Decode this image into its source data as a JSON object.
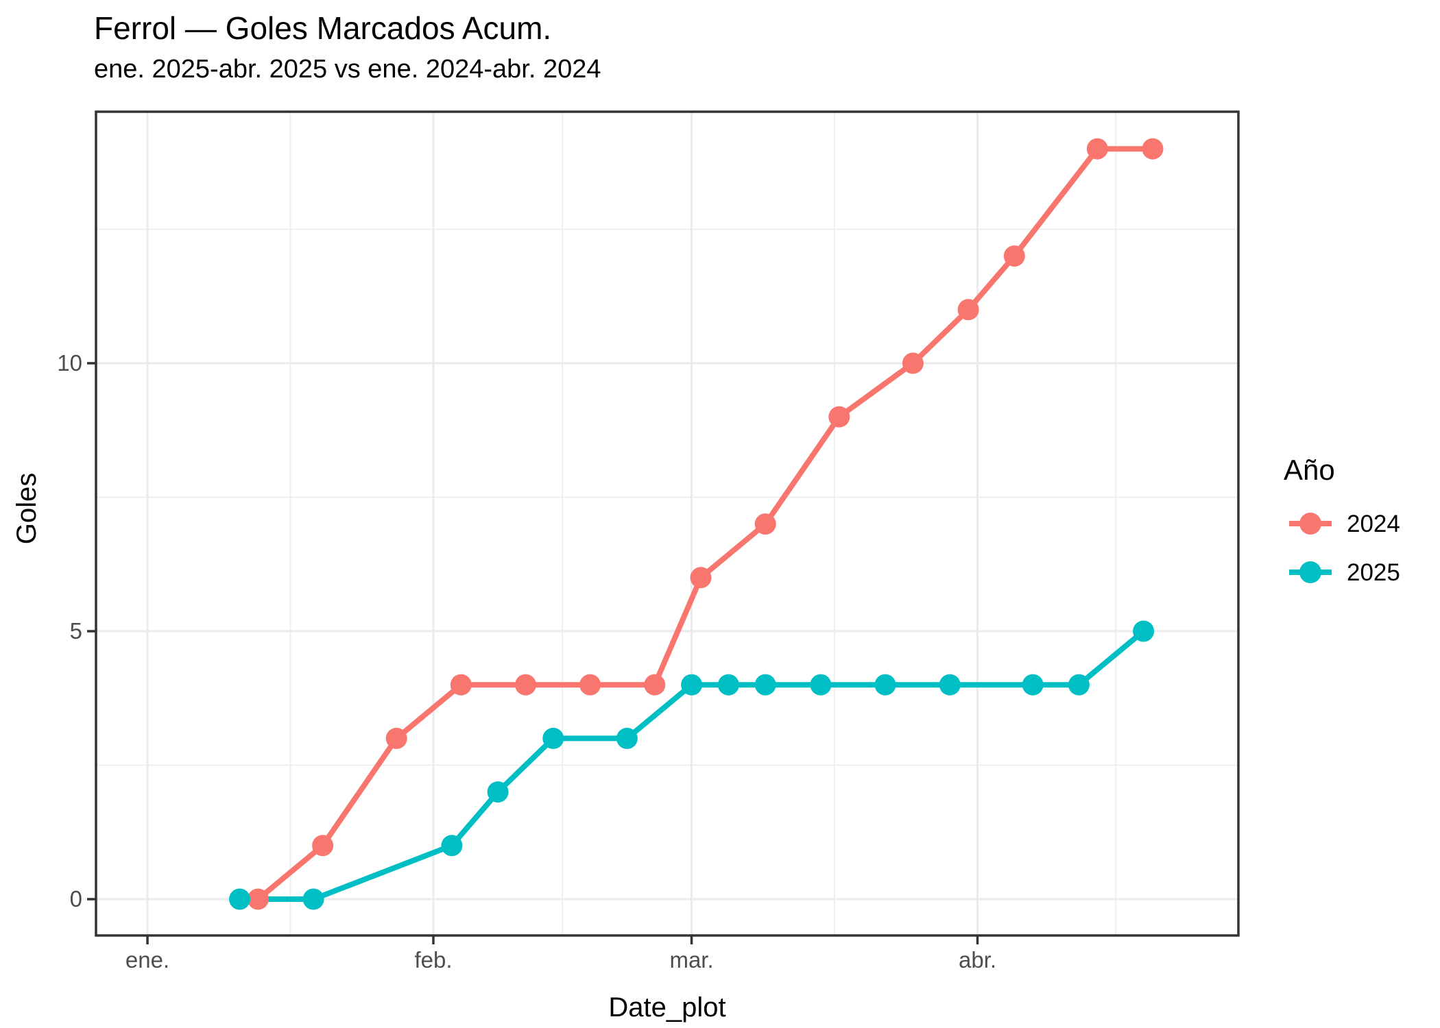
{
  "chart_data": {
    "type": "line",
    "title": "Ferrol — Goles Marcados Acum.",
    "subtitle": "ene. 2025-abr. 2025 vs ene. 2024-abr. 2024",
    "xlabel": "Date_plot",
    "ylabel": "Goles",
    "x_axis": {
      "type": "date",
      "major_ticks": [
        {
          "date": "01-01",
          "label": "ene."
        },
        {
          "date": "02-01",
          "label": "feb."
        },
        {
          "date": "03-01",
          "label": "mar."
        },
        {
          "date": "04-01",
          "label": "abr."
        }
      ],
      "range_days": [
        "dec-26",
        "apr-29"
      ],
      "grid": "major-and-minor"
    },
    "y_axis": {
      "ticks": [
        {
          "value": 0,
          "label": "0"
        },
        {
          "value": 5,
          "label": "5"
        },
        {
          "value": 10,
          "label": "10"
        }
      ],
      "minor_values": [
        2.5,
        7.5,
        12.5
      ],
      "lim": [
        -0.7,
        14.7
      ]
    },
    "legend": {
      "title": "Año",
      "position": "right",
      "entries": [
        {
          "label": "2024",
          "color": "#F8766D"
        },
        {
          "label": "2025",
          "color": "#00BFC4"
        }
      ]
    },
    "series": [
      {
        "name": "2024",
        "color": "#F8766D",
        "points": [
          [
            "01-13",
            0
          ],
          [
            "01-20",
            1
          ],
          [
            "01-28",
            3
          ],
          [
            "02-04",
            4
          ],
          [
            "02-11",
            4
          ],
          [
            "02-18",
            4
          ],
          [
            "02-25",
            4
          ],
          [
            "03-02",
            6
          ],
          [
            "03-09",
            7
          ],
          [
            "03-17",
            9
          ],
          [
            "03-25",
            10
          ],
          [
            "03-31",
            11
          ],
          [
            "04-05",
            12
          ],
          [
            "04-14",
            14
          ],
          [
            "04-20",
            14
          ]
        ]
      },
      {
        "name": "2025",
        "color": "#00BFC4",
        "points": [
          [
            "01-11",
            0
          ],
          [
            "01-19",
            0
          ],
          [
            "02-03",
            1
          ],
          [
            "02-08",
            2
          ],
          [
            "02-14",
            3
          ],
          [
            "02-22",
            3
          ],
          [
            "03-01",
            4
          ],
          [
            "03-05",
            4
          ],
          [
            "03-09",
            4
          ],
          [
            "03-15",
            4
          ],
          [
            "03-22",
            4
          ],
          [
            "03-29",
            4
          ],
          [
            "04-07",
            4
          ],
          [
            "04-12",
            4
          ],
          [
            "04-19",
            5
          ]
        ]
      }
    ]
  }
}
